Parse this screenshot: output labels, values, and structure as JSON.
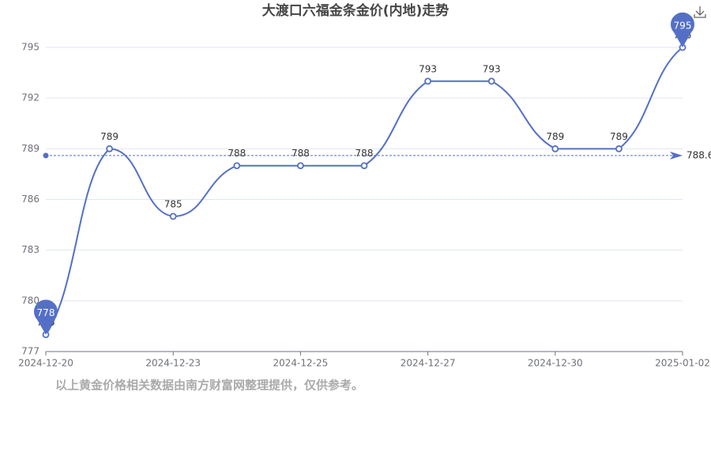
{
  "chart_data": {
    "type": "line",
    "title": "大渡口六福金条金价(内地)走势",
    "categories": [
      "2024-12-20",
      null,
      "2024-12-23",
      null,
      "2024-12-25",
      null,
      "2024-12-27",
      null,
      "2024-12-30",
      null,
      "2025-01-02"
    ],
    "series": [
      {
        "color": "#5470c6",
        "values": [
          778,
          789,
          785,
          788,
          788,
          788,
          793,
          793,
          789,
          789,
          795
        ]
      }
    ],
    "ylim": [
      777,
      795
    ],
    "yticks": [
      777,
      780,
      783,
      786,
      789,
      792,
      795
    ],
    "grid": true,
    "average": 788.6,
    "footnote": "以上黄金价格相关数据由南方财富网整理提供，仅供参考。"
  }
}
